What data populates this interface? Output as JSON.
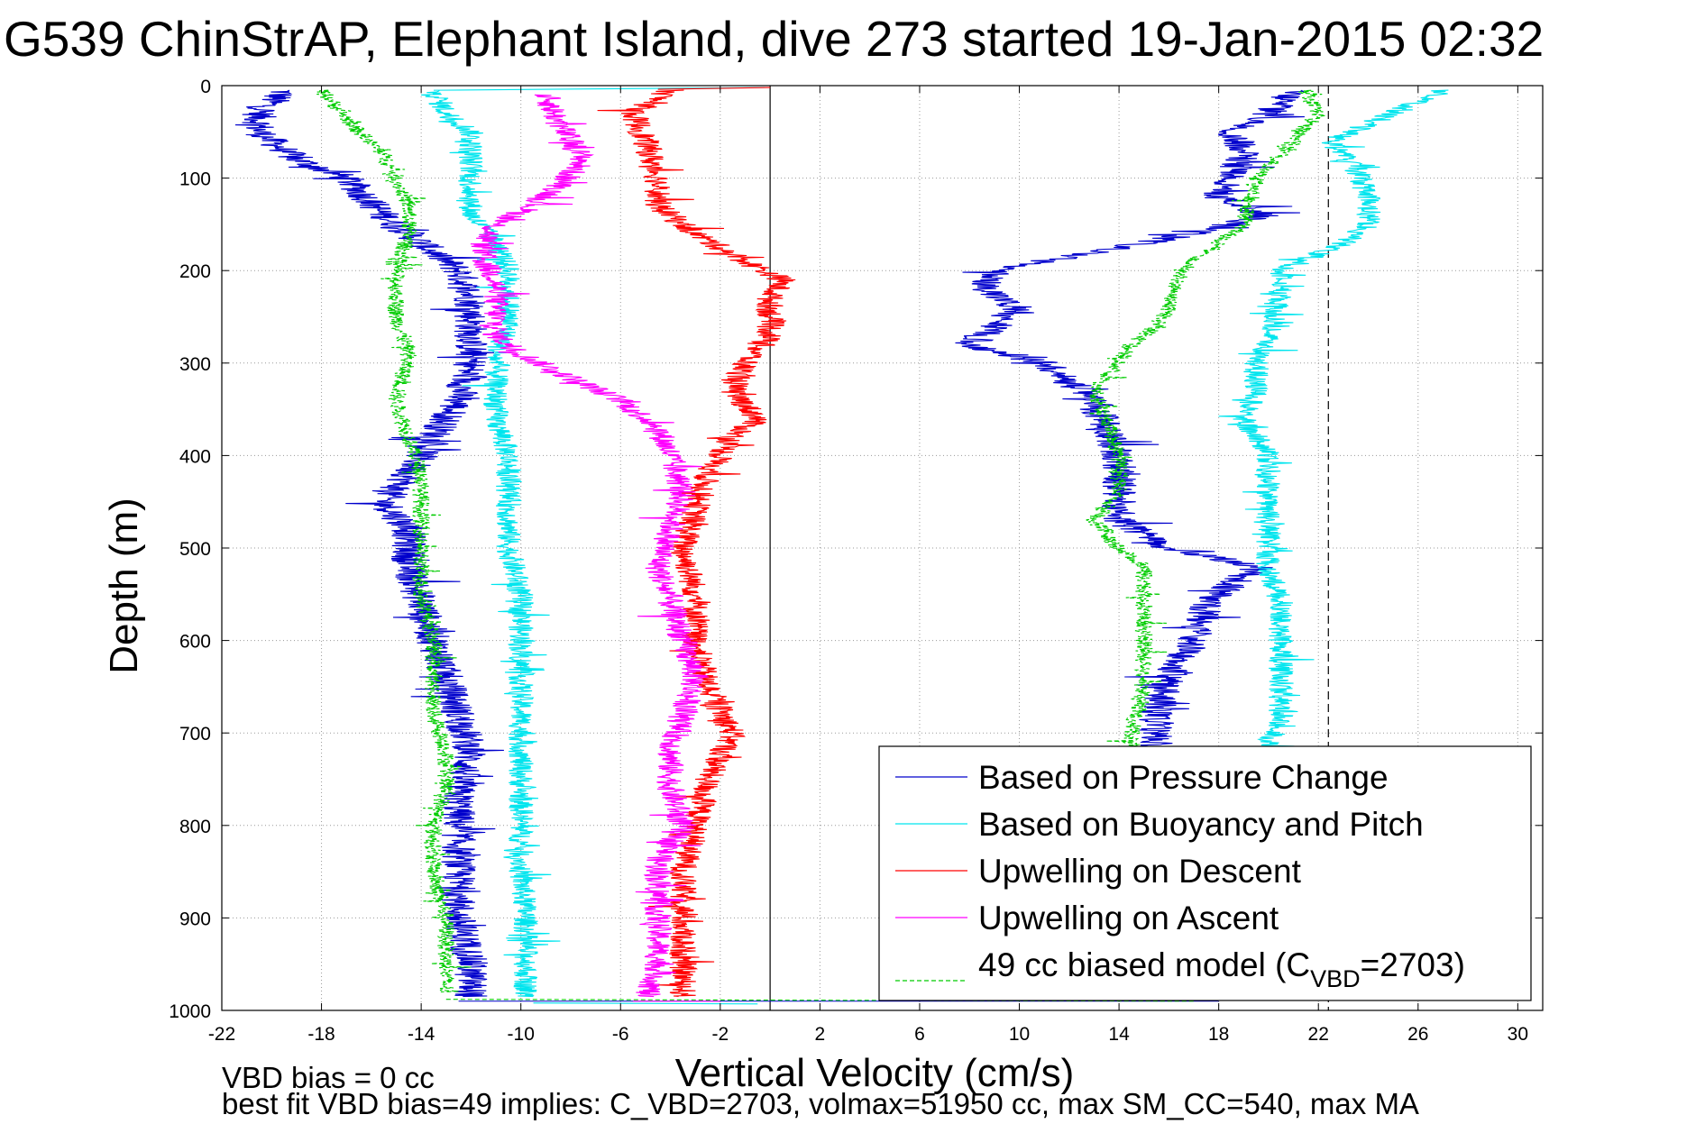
{
  "title": "G539 ChinStrAP, Elephant Island, dive 273 started 19-Jan-2015 02:32",
  "footer": {
    "line1": "VBD bias = 0 cc",
    "line2": "best fit VBD bias=49 implies: C_VBD=2703, volmax=51950 cc, max SM_CC=540, max MA"
  },
  "chart_data": {
    "type": "line",
    "title": "G539 ChinStrAP, Elephant Island, dive 273 started 19-Jan-2015 02:32",
    "xlabel": "Vertical Velocity (cm/s)",
    "ylabel": "Depth (m)",
    "xlim": [
      -22,
      31
    ],
    "ylim": [
      1000,
      0
    ],
    "y_reversed": true,
    "grid": true,
    "x_ticks": [
      "-22",
      "-18",
      "-14",
      "-10",
      "-6",
      "-2",
      "2",
      "6",
      "10",
      "14",
      "18",
      "22",
      "26",
      "30"
    ],
    "y_ticks": [
      "0",
      "100",
      "200",
      "300",
      "400",
      "500",
      "600",
      "700",
      "800",
      "900",
      "1000"
    ],
    "reference_lines": [
      {
        "x": 0,
        "style": "solid",
        "color": "#000000"
      },
      {
        "x": 22.4,
        "style": "dashed",
        "color": "#000000"
      }
    ],
    "legend_position": "bottom-right",
    "legend": [
      {
        "label": "Based on Pressure Change",
        "color": "#0000cc",
        "style": "solid"
      },
      {
        "label": "Based on Buoyancy and Pitch",
        "color": "#00e5ee",
        "style": "solid"
      },
      {
        "label": "Upwelling on Descent",
        "color": "#ff0000",
        "style": "solid"
      },
      {
        "label": "Upwelling on Ascent",
        "color": "#ff00ff",
        "style": "solid"
      },
      {
        "label": "49 cc biased model (C",
        "label_sub": "VBD",
        "label_after": "=2703)",
        "color": "#00cc00",
        "style": "dashed"
      }
    ],
    "series": [
      {
        "name": "Based on Pressure Change",
        "color": "#0000cc",
        "style": "solid",
        "jitter": 0.7,
        "descent": {
          "depth": [
            5,
            30,
            50,
            80,
            100,
            140,
            170,
            200,
            230,
            260,
            300,
            340,
            380,
            420,
            450,
            480,
            520,
            560,
            600,
            640,
            680,
            720,
            760,
            800,
            850,
            900,
            950,
            985
          ],
          "x": [
            -19.5,
            -20.5,
            -20.5,
            -19,
            -17,
            -15.5,
            -14,
            -12.5,
            -12,
            -12,
            -12,
            -12.5,
            -13.5,
            -14.5,
            -15.5,
            -14.5,
            -14.5,
            -14,
            -13.5,
            -13,
            -12.5,
            -12,
            -12.5,
            -12.5,
            -12.5,
            -12.5,
            -12,
            -12
          ]
        },
        "ascent": {
          "depth": [
            985,
            900,
            800,
            720,
            680,
            640,
            600,
            560,
            520,
            500,
            470,
            440,
            400,
            370,
            340,
            300,
            280,
            260,
            240,
            220,
            200,
            180,
            160,
            140,
            120,
            100,
            70,
            50,
            30,
            5
          ],
          "x": [
            17,
            16.5,
            16,
            15.5,
            15.5,
            16,
            17,
            17.5,
            19.5,
            16,
            14,
            14,
            14,
            13.5,
            13,
            11,
            8,
            9,
            10,
            8.5,
            9,
            13,
            17,
            20,
            18,
            18.5,
            19,
            18.5,
            20,
            21
          ]
        }
      },
      {
        "name": "Based on Buoyancy and Pitch",
        "color": "#00e5ee",
        "style": "solid",
        "jitter": 0.5,
        "descent": {
          "depth": [
            5,
            30,
            50,
            80,
            100,
            140,
            170,
            200,
            230,
            260,
            290,
            320,
            360,
            400,
            450,
            500,
            550,
            600,
            650,
            700,
            750,
            800,
            850,
            900,
            950,
            985
          ],
          "x": [
            -13.5,
            -13,
            -12,
            -12,
            -12,
            -12,
            -11,
            -10.5,
            -10.5,
            -10.5,
            -11,
            -11,
            -11,
            -10.5,
            -10.5,
            -10.5,
            -10,
            -10,
            -10,
            -10,
            -10,
            -10,
            -10,
            -9.8,
            -9.8,
            -9.8
          ]
        },
        "ascent": {
          "depth": [
            985,
            900,
            800,
            710,
            690,
            640,
            600,
            560,
            520,
            480,
            440,
            400,
            360,
            330,
            300,
            270,
            230,
            200,
            170,
            150,
            120,
            90,
            60,
            30,
            5
          ],
          "x": [
            17.5,
            18,
            19,
            20,
            20.5,
            20.5,
            20.5,
            20.5,
            20,
            20,
            20,
            20,
            19,
            19.5,
            19.5,
            20,
            20.5,
            20.5,
            23,
            24,
            24,
            23.5,
            22.5,
            25,
            27
          ]
        }
      },
      {
        "name": "Upwelling on Descent",
        "color": "#ff0000",
        "style": "solid",
        "jitter": 0.55,
        "descent": {
          "depth": [
            5,
            30,
            60,
            100,
            130,
            160,
            190,
            210,
            230,
            250,
            270,
            300,
            330,
            360,
            380,
            420,
            460,
            500,
            550,
            600,
            650,
            700,
            750,
            800,
            850,
            900,
            950,
            985
          ],
          "x": [
            -4,
            -5.5,
            -5,
            -4.5,
            -4.5,
            -3,
            -1,
            0.5,
            0,
            0,
            0,
            -1,
            -1.5,
            -0.5,
            -1.5,
            -2.5,
            -3,
            -3.5,
            -3,
            -3,
            -2.5,
            -1.5,
            -2.5,
            -3,
            -3.5,
            -3.5,
            -3.5,
            -3.5
          ]
        }
      },
      {
        "name": "Upwelling on Ascent",
        "color": "#ff00ff",
        "style": "solid",
        "jitter": 0.55,
        "descent": {
          "depth": [
            10,
            40,
            80,
            110,
            130,
            150,
            170,
            190,
            210,
            230,
            250,
            270,
            290,
            310,
            340,
            370,
            400,
            440,
            480,
            520,
            560,
            600,
            640,
            680,
            720,
            760,
            800,
            840,
            880,
            920,
            960,
            985
          ],
          "x": [
            -9,
            -8.5,
            -7.5,
            -8.5,
            -9.5,
            -11,
            -11.5,
            -11.5,
            -11,
            -11,
            -11,
            -11,
            -10,
            -8.5,
            -6,
            -4.5,
            -4,
            -3.5,
            -4,
            -4.5,
            -4,
            -3.5,
            -3,
            -3.5,
            -4,
            -4,
            -3.5,
            -4.5,
            -4.5,
            -4.5,
            -4.5,
            -5
          ]
        }
      },
      {
        "name": "49 cc biased model",
        "color": "#00cc00",
        "style": "dashed",
        "jitter": 0.35,
        "descent": {
          "depth": [
            5,
            50,
            75,
            100,
            130,
            160,
            200,
            250,
            290,
            340,
            380,
            420,
            460,
            500,
            550,
            600,
            640,
            680,
            720,
            760,
            800,
            850,
            900,
            950,
            980
          ],
          "x": [
            -18,
            -16.5,
            -15.5,
            -15,
            -14.5,
            -14.5,
            -15,
            -15,
            -14.5,
            -15,
            -14.5,
            -14,
            -14,
            -14,
            -14,
            -13.5,
            -13.5,
            -13.5,
            -13,
            -13,
            -13.5,
            -13.5,
            -13,
            -13,
            -13
          ]
        },
        "ascent": {
          "depth": [
            985,
            900,
            800,
            700,
            650,
            600,
            550,
            520,
            500,
            470,
            440,
            400,
            360,
            330,
            300,
            280,
            260,
            240,
            200,
            150,
            100,
            60,
            30,
            5
          ],
          "x": [
            14.5,
            14.5,
            14.5,
            14.5,
            15,
            15,
            15,
            15,
            14,
            13,
            14,
            14,
            13.5,
            13,
            14,
            14.5,
            15.5,
            16,
            16.5,
            19,
            19.5,
            21,
            22,
            21.5
          ]
        }
      }
    ]
  }
}
